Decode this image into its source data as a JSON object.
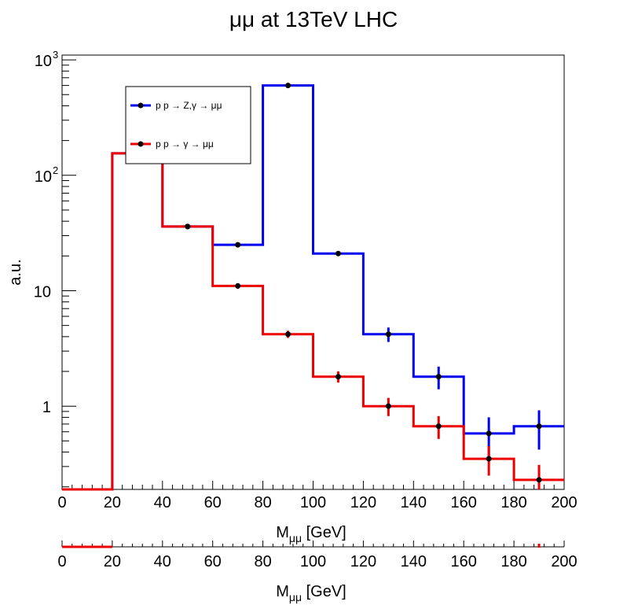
{
  "chart_data": [
    {
      "type": "histogram-step",
      "title": "μμ at 13TeV LHC",
      "xlabel_main": "M",
      "xlabel_sub": "μμ",
      "xlabel_unit": " [GeV]",
      "ylabel": "a.u.",
      "xlim": [
        0,
        200
      ],
      "ylim": [
        0.19,
        1100
      ],
      "yscale": "log",
      "x_ticks": [
        {
          "v": 0,
          "label": "0"
        },
        {
          "v": 20,
          "label": "20"
        },
        {
          "v": 40,
          "label": "40"
        },
        {
          "v": 60,
          "label": "60"
        },
        {
          "v": 80,
          "label": "80"
        },
        {
          "v": 100,
          "label": "100"
        },
        {
          "v": 120,
          "label": "120"
        },
        {
          "v": 140,
          "label": "140"
        },
        {
          "v": 160,
          "label": "160"
        },
        {
          "v": 180,
          "label": "180"
        },
        {
          "v": 200,
          "label": "200"
        }
      ],
      "y_ticks": [
        {
          "v": 1,
          "base": "1",
          "exp": ""
        },
        {
          "v": 10,
          "base": "10",
          "exp": ""
        },
        {
          "v": 100,
          "base": "10",
          "exp": "2"
        },
        {
          "v": 1000,
          "base": "10",
          "exp": "3"
        }
      ],
      "bin_edges": [
        0,
        20,
        40,
        60,
        80,
        100,
        120,
        140,
        160,
        180,
        200
      ],
      "legend": {
        "position": "top-left",
        "entries": [
          {
            "label": "p p → Z,γ  → μμ",
            "color": "#0000ee"
          },
          {
            "label": "p p → γ → μμ",
            "color": "#ee0000"
          }
        ]
      },
      "series": [
        {
          "name": "p p → Z,γ  → μμ",
          "color": "#0000ee",
          "steps": [
            0.185,
            155,
            36,
            25,
            600,
            21,
            4.2,
            1.8,
            0.58,
            0.67
          ],
          "points": [
            {
              "x": 50,
              "y": 36,
              "err": 1.5
            },
            {
              "x": 70,
              "y": 25,
              "err": 1.0
            },
            {
              "x": 90,
              "y": 600,
              "err": 25
            },
            {
              "x": 110,
              "y": 21,
              "err": 1.0
            },
            {
              "x": 130,
              "y": 4.2,
              "err": 0.6
            },
            {
              "x": 150,
              "y": 1.8,
              "err": 0.4
            },
            {
              "x": 170,
              "y": 0.58,
              "err": 0.22
            },
            {
              "x": 190,
              "y": 0.67,
              "err": 0.25
            }
          ]
        },
        {
          "name": "p p → γ → μμ",
          "color": "#ee0000",
          "steps": [
            0.185,
            155,
            36,
            11,
            4.2,
            1.8,
            1.0,
            0.67,
            0.35,
            0.23
          ],
          "points": [
            {
              "x": 50,
              "y": 36,
              "err": 1.5
            },
            {
              "x": 70,
              "y": 11,
              "err": 0.6
            },
            {
              "x": 90,
              "y": 4.2,
              "err": 0.3
            },
            {
              "x": 110,
              "y": 1.8,
              "err": 0.2
            },
            {
              "x": 130,
              "y": 1.0,
              "err": 0.18
            },
            {
              "x": 150,
              "y": 0.67,
              "err": 0.15
            },
            {
              "x": 170,
              "y": 0.35,
              "err": 0.1
            },
            {
              "x": 190,
              "y": 0.23,
              "err": 0.08
            }
          ]
        }
      ]
    },
    {
      "type": "histogram-step",
      "xlabel_main": "M",
      "xlabel_sub": "μμ",
      "xlabel_unit": " [GeV]",
      "xlim": [
        0,
        200
      ],
      "x_ticks": [
        {
          "v": 0,
          "label": "0"
        },
        {
          "v": 20,
          "label": "20"
        },
        {
          "v": 40,
          "label": "40"
        },
        {
          "v": 60,
          "label": "60"
        },
        {
          "v": 80,
          "label": "80"
        },
        {
          "v": 100,
          "label": "100"
        },
        {
          "v": 120,
          "label": "120"
        },
        {
          "v": 140,
          "label": "140"
        },
        {
          "v": 160,
          "label": "160"
        },
        {
          "v": 180,
          "label": "180"
        },
        {
          "v": 200,
          "label": "200"
        }
      ],
      "series": [
        {
          "color": "#ee0000",
          "segments": [
            [
              0,
              20
            ]
          ],
          "errbars": [
            190
          ]
        }
      ]
    }
  ]
}
